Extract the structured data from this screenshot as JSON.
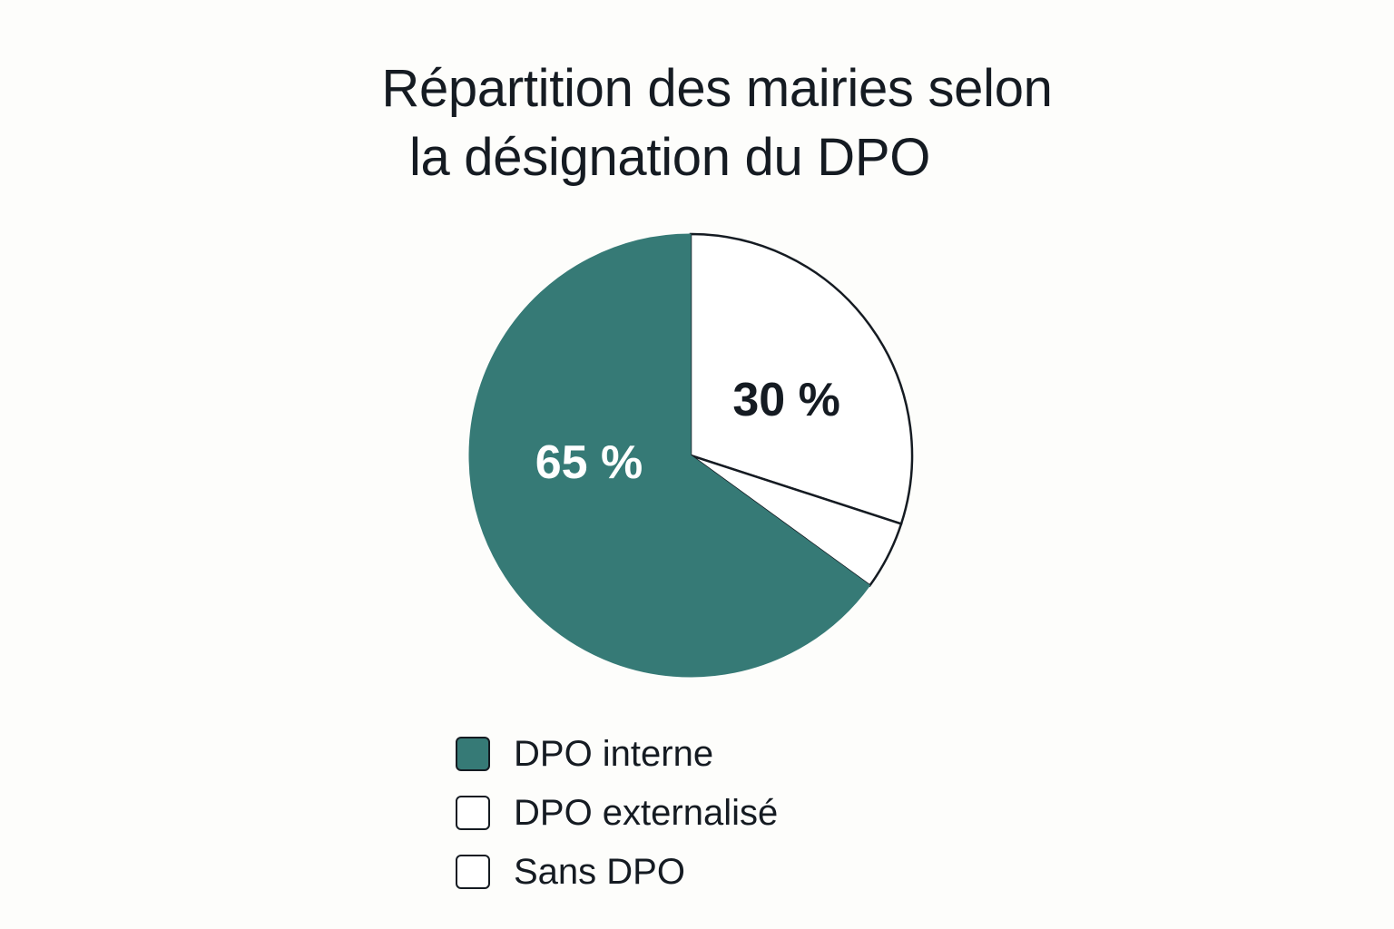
{
  "chart_data": {
    "type": "pie",
    "title": [
      "Répartition des mairies selon",
      "la désignation du DPO"
    ],
    "slices": [
      {
        "name": "DPO interne",
        "value": 65,
        "label": "65 %",
        "color": "#367a76",
        "label_color": "#ffffff"
      },
      {
        "name": "DPO externalisé",
        "value": 30,
        "label": "30 %",
        "color": "#ffffff",
        "label_color": "#151b22"
      },
      {
        "name": "Sans DPO",
        "value": 5,
        "label": "",
        "color": "#ffffff",
        "label_color": "#151b22"
      }
    ],
    "legend": {
      "placement": "bottom",
      "items": [
        {
          "label": "DPO interne",
          "color": "#367a76"
        },
        {
          "label": "DPO externalisé",
          "color": "#ffffff"
        },
        {
          "label": "Sans DPO",
          "color": "#ffffff"
        }
      ]
    }
  }
}
